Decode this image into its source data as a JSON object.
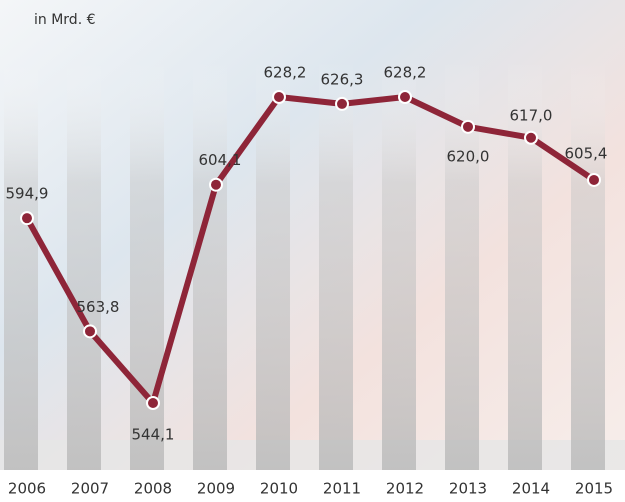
{
  "chart_data": {
    "type": "line",
    "ylabel": "in Mrd. €",
    "categories": [
      "2006",
      "2007",
      "2008",
      "2009",
      "2010",
      "2011",
      "2012",
      "2013",
      "2014",
      "2015"
    ],
    "series": [
      {
        "color": "#8e2538",
        "values": [
          594.9,
          563.8,
          544.1,
          604.1,
          628.2,
          626.3,
          628.2,
          620.0,
          617.0,
          605.4
        ],
        "value_labels": [
          "594,9",
          "563,8",
          "544,1",
          "604,1",
          "628,2",
          "626,3",
          "628,2",
          "620,0",
          "617,0",
          "605,4"
        ]
      }
    ]
  }
}
